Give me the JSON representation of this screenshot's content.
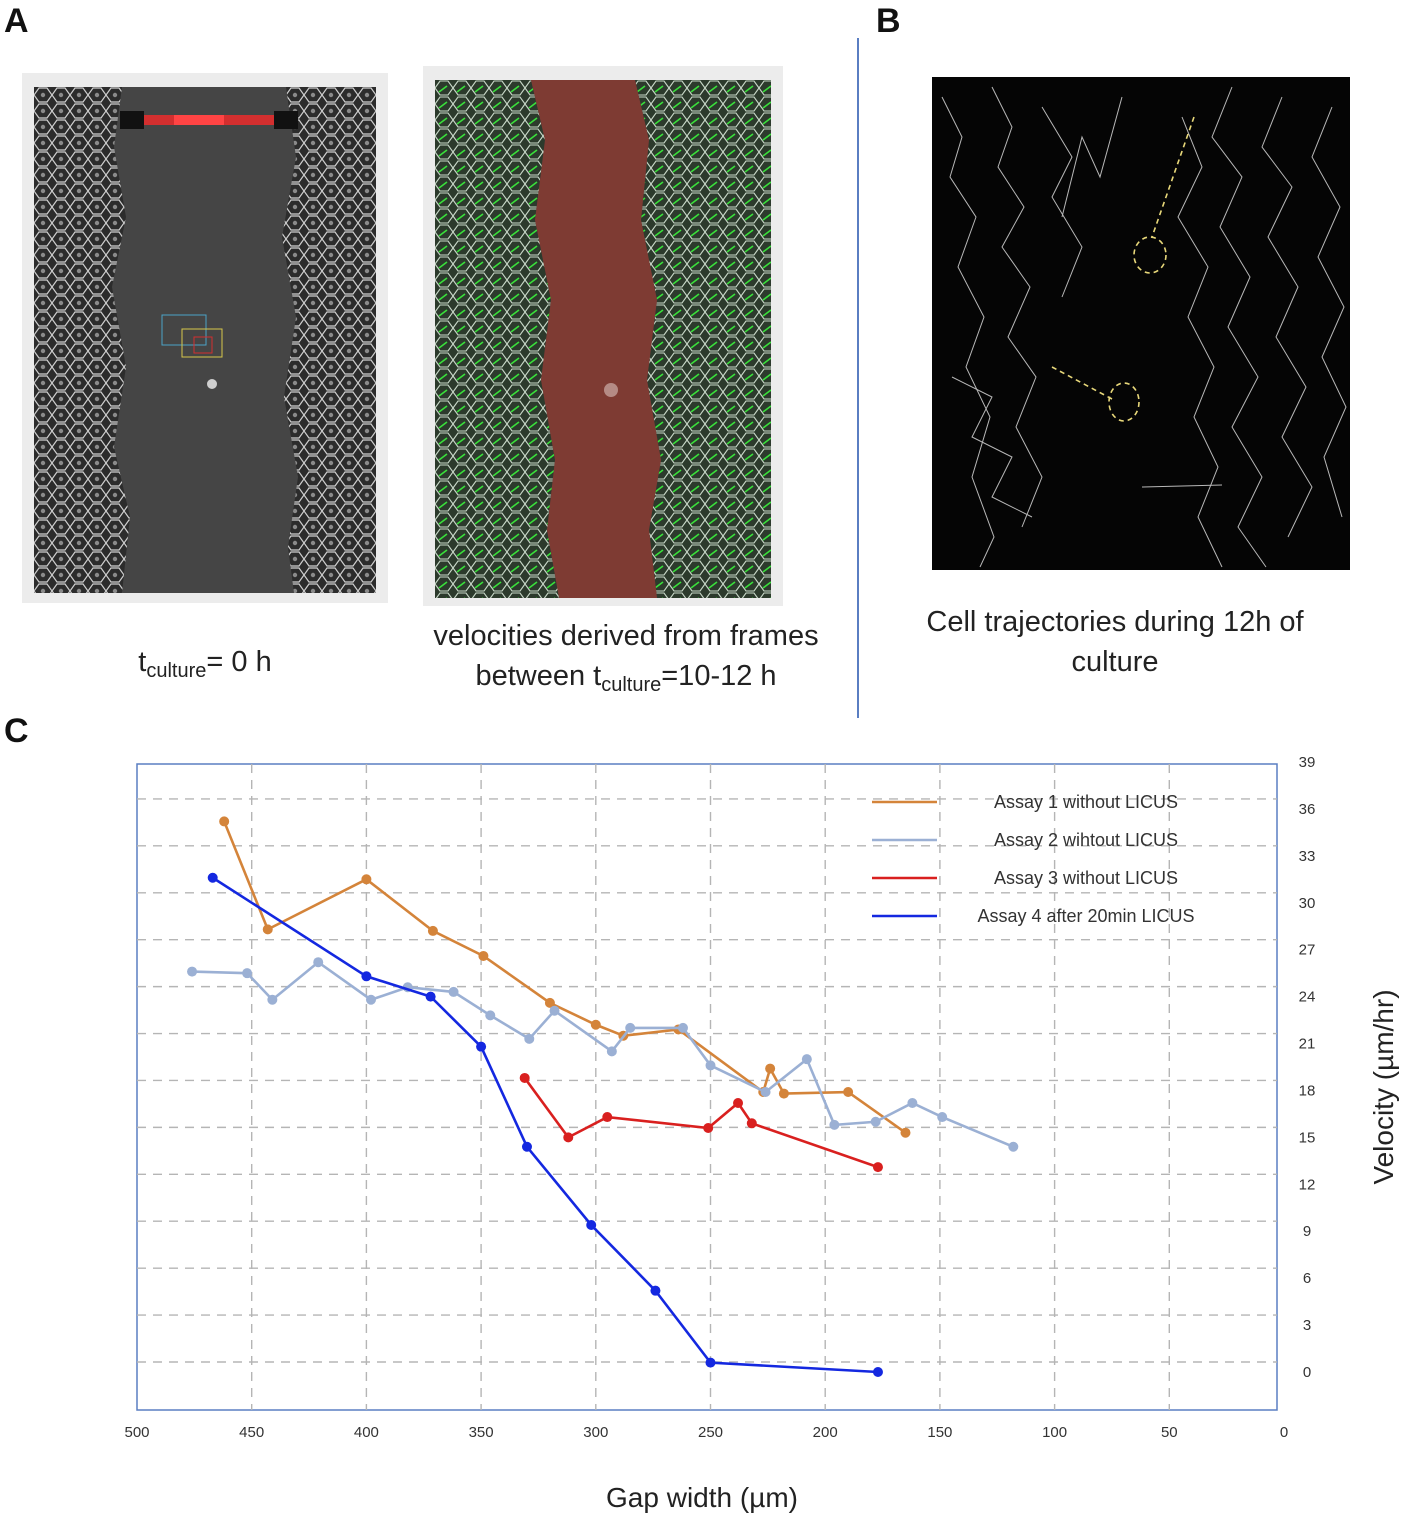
{
  "panels": {
    "a": {
      "letter": "A",
      "caption_left": {
        "prefix": "t",
        "sub": "culture",
        "suffix": "= 0 h"
      },
      "caption_right": {
        "line1": "velocities derived  from frames",
        "line2_prefix": "between  t",
        "line2_sub": "culture",
        "line2_suffix": "=10-12 h"
      }
    },
    "b": {
      "letter": "B",
      "caption": {
        "line1": "Cell trajectories during 12h of",
        "line2": "culture"
      }
    },
    "c": {
      "letter": "C"
    }
  },
  "colors": {
    "assay1": "#d4843a",
    "assay2": "#9bb0d4",
    "assay3": "#d9201f",
    "assay4": "#1428e0",
    "frame": "#5a7ec2",
    "grid": "#b5b5b5"
  },
  "chart_data": {
    "type": "line",
    "title": "",
    "xlabel": "Gap width (µm)",
    "ylabel": "Velocity (µm/hr)",
    "xlim": [
      500,
      0
    ],
    "ylim": [
      -2,
      40
    ],
    "x_ticks": [
      500,
      450,
      400,
      350,
      300,
      250,
      200,
      150,
      100,
      50,
      0
    ],
    "y_ticks": [
      0,
      3,
      6,
      9,
      12,
      15,
      18,
      21,
      24,
      27,
      30,
      33,
      36,
      39
    ],
    "grid": true,
    "legend_position": "top-right",
    "series": [
      {
        "name": "Assay 1 without LICUS",
        "color_key": "assay1",
        "x": [
          462,
          443,
          400,
          371,
          349,
          320,
          300,
          288,
          264,
          227,
          224,
          218,
          190,
          165
        ],
        "y": [
          35.2,
          28.3,
          31.5,
          28.2,
          26.6,
          23.6,
          22.2,
          21.5,
          21.9,
          17.9,
          19.4,
          17.8,
          17.9,
          15.3
        ]
      },
      {
        "name": "Assay 2 wihtout LICUS",
        "color_key": "assay2",
        "x": [
          476,
          452,
          441,
          421,
          398,
          382,
          362,
          346,
          329,
          318,
          293,
          285,
          262,
          250,
          226,
          208,
          196,
          178,
          162,
          149,
          118
        ],
        "y": [
          25.6,
          25.5,
          23.8,
          26.2,
          23.8,
          24.6,
          24.3,
          22.8,
          21.3,
          23.1,
          20.5,
          22.0,
          22.0,
          19.6,
          17.9,
          20.0,
          15.8,
          16.0,
          17.2,
          16.3,
          14.4
        ]
      },
      {
        "name": "Assay 3 without LICUS",
        "color_key": "assay3",
        "x": [
          331,
          312,
          295,
          251,
          238,
          232,
          177
        ],
        "y": [
          18.8,
          15.0,
          16.3,
          15.6,
          17.2,
          15.9,
          13.1
        ]
      },
      {
        "name": "Assay 4 after 20min LICUS",
        "color_key": "assay4",
        "x": [
          467,
          400,
          372,
          350,
          330,
          302,
          274,
          250,
          177
        ],
        "y": [
          31.6,
          25.3,
          24.0,
          20.8,
          14.4,
          9.4,
          5.2,
          0.6,
          0.0
        ]
      }
    ]
  }
}
